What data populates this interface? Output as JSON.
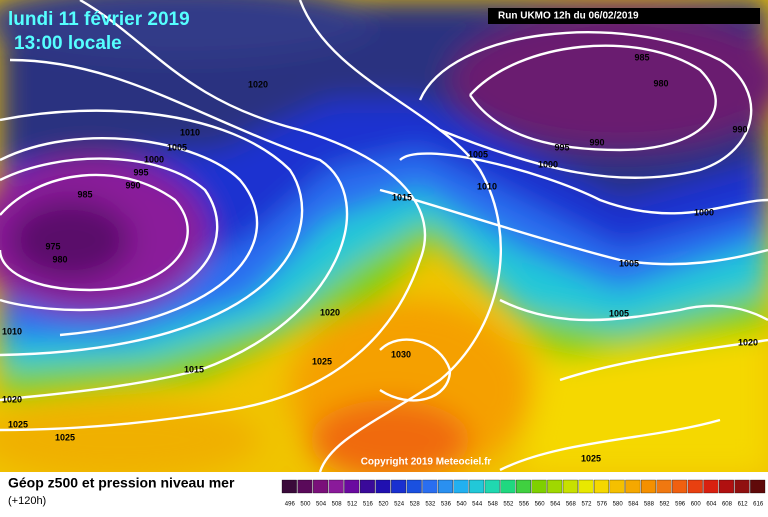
{
  "header": {
    "title": "lundi 11 février 2019",
    "subtitle": "13:00 locale",
    "run": "Run UKMO 12h du 06/02/2019"
  },
  "isobar_labels": [
    "1020",
    "985",
    "980",
    "990",
    "1010",
    "1005",
    "1000",
    "995",
    "990",
    "985",
    "995",
    "990",
    "1005",
    "1000",
    "1010",
    "1015",
    "1000",
    "975",
    "980",
    "1005",
    "1005",
    "1020",
    "1020",
    "1010",
    "1030",
    "1025",
    "1015",
    "1020",
    "1025",
    "1025",
    "1025"
  ],
  "copyright": "Copyright 2019 Meteociel.fr",
  "footer": {
    "title": "Géop z500 et pression niveau mer",
    "subtitle": "(+120h)"
  },
  "scale_labels": [
    "496",
    "500",
    "504",
    "508",
    "512",
    "516",
    "520",
    "524",
    "528",
    "532",
    "536",
    "540",
    "544",
    "548",
    "552",
    "556",
    "560",
    "564",
    "568",
    "572",
    "576",
    "580",
    "584",
    "588",
    "592",
    "596",
    "600",
    "604",
    "608",
    "612",
    "616"
  ]
}
